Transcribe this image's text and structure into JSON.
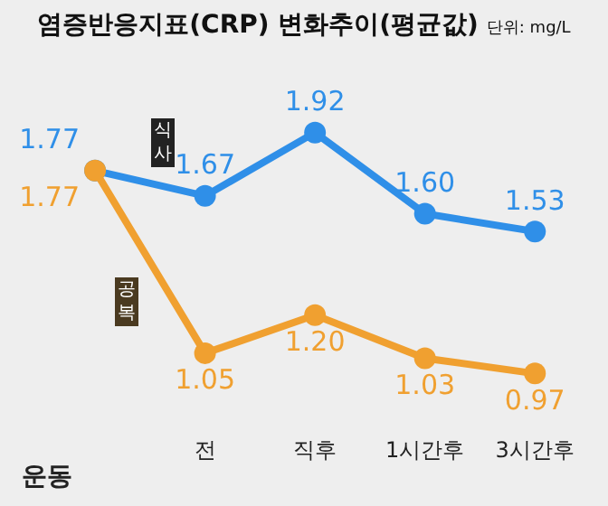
{
  "chart_data": {
    "type": "line",
    "title": "염증반응지표(CRP) 변화추이(평균값)",
    "subtitle": "단위: mg/L",
    "xlabel": "운동",
    "categories": [
      null,
      "전",
      "직후",
      "1시간후",
      "3시간후"
    ],
    "series": [
      {
        "name": "식사",
        "color": "#2f8fe8",
        "values": [
          1.77,
          1.67,
          1.92,
          1.6,
          1.53
        ],
        "value_labels": [
          "1.77",
          "1.67",
          "1.92",
          "1.60",
          "1.53"
        ]
      },
      {
        "name": "공복",
        "color": "#f0a030",
        "values": [
          1.77,
          1.05,
          1.2,
          1.03,
          0.97
        ],
        "value_labels": [
          "1.77",
          "1.05",
          "1.20",
          "1.03",
          "0.97"
        ]
      }
    ],
    "marker": "circle",
    "line_style": "solid",
    "legend": false,
    "grid": false
  }
}
